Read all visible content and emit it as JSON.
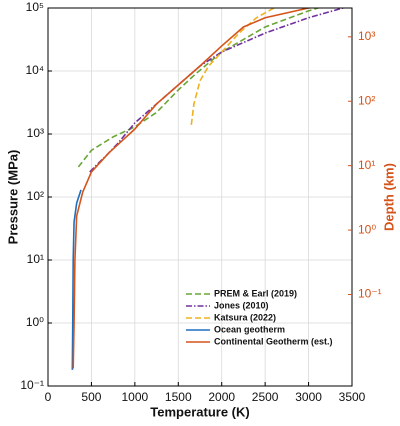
{
  "chart_data": {
    "type": "line",
    "x_label": "Temperature (K)",
    "y_label": "Pressure (MPa)",
    "y2_label": "Depth (km)",
    "xlim": [
      0,
      3500
    ],
    "xticks": [
      0,
      500,
      1000,
      1500,
      2000,
      2500,
      3000,
      3500
    ],
    "ylim": [
      0.1,
      100000
    ],
    "y_scale": "log",
    "yticks": [
      {
        "value": 0.1,
        "label": "10⁻¹"
      },
      {
        "value": 1,
        "label": "10⁰"
      },
      {
        "value": 10,
        "label": "10¹"
      },
      {
        "value": 100,
        "label": "10²"
      },
      {
        "value": 1000,
        "label": "10³"
      },
      {
        "value": 10000,
        "label": "10⁴"
      },
      {
        "value": 100000,
        "label": "10⁵"
      }
    ],
    "y2lim": [
      0.0038,
      2800
    ],
    "y2_scale": "log",
    "y2_color": "#d4541b",
    "y2ticks": [
      {
        "value": 0.1,
        "label": "10⁻¹"
      },
      {
        "value": 1,
        "label": "10⁰"
      },
      {
        "value": 10,
        "label": "10¹"
      },
      {
        "value": 100,
        "label": "10²"
      },
      {
        "value": 1000,
        "label": "10³"
      }
    ],
    "grid": true,
    "legend": "lower right",
    "series": [
      {
        "name": "PREM & Earl (2019)",
        "color": "#6aa535",
        "style": "dashed",
        "x": [
          350,
          500,
          750,
          1000,
          1250,
          1500,
          1700,
          2000,
          2500,
          3000,
          3300
        ],
        "values": [
          300,
          550,
          900,
          1300,
          2200,
          5000,
          9000,
          20000,
          50000,
          90000,
          120000
        ]
      },
      {
        "name": "Jones (2010)",
        "color": "#7030a0",
        "style": "dashdot",
        "x": [
          480,
          700,
          800,
          1000,
          1250,
          1500,
          1750,
          2000,
          2500,
          3000,
          3500
        ],
        "values": [
          250,
          500,
          700,
          1500,
          3000,
          6000,
          12000,
          20000,
          40000,
          70000,
          110000
        ]
      },
      {
        "name": "Katsura (2022)",
        "color": "#f0b020",
        "style": "dashed",
        "x": [
          1650,
          1680,
          1750,
          1850,
          2000,
          2200,
          2400,
          2600,
          2800
        ],
        "values": [
          1400,
          3000,
          7000,
          12000,
          20000,
          40000,
          70000,
          100000,
          150000
        ]
      },
      {
        "name": "Ocean geotherm",
        "color": "#1f6fc0",
        "style": "solid",
        "x": [
          280,
          285,
          290,
          300,
          330,
          380
        ],
        "values": [
          0.18,
          1,
          10,
          40,
          80,
          130
        ]
      },
      {
        "name": "Continental Geotherm (est.)",
        "color": "#d4541b",
        "style": "solid",
        "x": [
          290,
          300,
          310,
          330,
          400,
          500,
          700,
          1000,
          1250,
          1500,
          1750,
          2000,
          2250,
          2500,
          3000,
          3500
        ],
        "values": [
          0.19,
          1,
          10,
          50,
          120,
          250,
          500,
          1200,
          3000,
          6000,
          12000,
          25000,
          50000,
          70000,
          100000,
          120000
        ]
      }
    ]
  }
}
